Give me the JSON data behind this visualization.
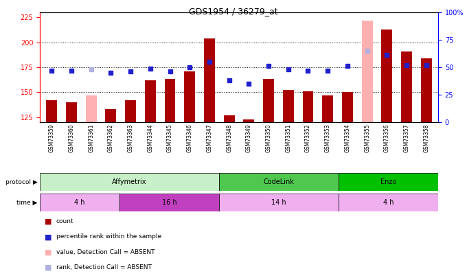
{
  "title": "GDS1954 / 36279_at",
  "samples": [
    "GSM73359",
    "GSM73360",
    "GSM73361",
    "GSM73362",
    "GSM73363",
    "GSM73344",
    "GSM73345",
    "GSM73346",
    "GSM73347",
    "GSM73348",
    "GSM73349",
    "GSM73350",
    "GSM73351",
    "GSM73352",
    "GSM73353",
    "GSM73354",
    "GSM73355",
    "GSM73356",
    "GSM73357",
    "GSM73358"
  ],
  "count_values": [
    142,
    140,
    147,
    133,
    142,
    162,
    163,
    171,
    204,
    127,
    123,
    163,
    152,
    151,
    147,
    150,
    222,
    213,
    191,
    184
  ],
  "rank_values": [
    47,
    47,
    48,
    45,
    46,
    49,
    46,
    50,
    55,
    38,
    35,
    51,
    48,
    47,
    47,
    51,
    65,
    61,
    52,
    52
  ],
  "absent_count": [
    false,
    false,
    true,
    false,
    false,
    false,
    false,
    false,
    false,
    false,
    false,
    false,
    false,
    false,
    false,
    false,
    true,
    false,
    false,
    false
  ],
  "absent_rank": [
    false,
    false,
    true,
    false,
    false,
    false,
    false,
    false,
    false,
    false,
    false,
    false,
    false,
    false,
    false,
    false,
    true,
    false,
    false,
    false
  ],
  "ylim_left": [
    120,
    230
  ],
  "ylim_right": [
    0,
    100
  ],
  "yticks_left": [
    125,
    150,
    175,
    200,
    225
  ],
  "yticks_right": [
    0,
    25,
    50,
    75,
    100
  ],
  "protocol_groups": [
    {
      "label": "Affymetrix",
      "start": 0,
      "end": 9,
      "color": "#c8f0c8"
    },
    {
      "label": "CodeLink",
      "start": 9,
      "end": 15,
      "color": "#50c850"
    },
    {
      "label": "Enzo",
      "start": 15,
      "end": 20,
      "color": "#00c000"
    }
  ],
  "time_groups": [
    {
      "label": "4 h",
      "start": 0,
      "end": 4,
      "color": "#f0b0f0"
    },
    {
      "label": "16 h",
      "start": 4,
      "end": 9,
      "color": "#c040c0"
    },
    {
      "label": "14 h",
      "start": 9,
      "end": 15,
      "color": "#f0b0f0"
    },
    {
      "label": "4 h",
      "start": 15,
      "end": 20,
      "color": "#f0b0f0"
    }
  ],
  "bar_width": 0.55,
  "count_color": "#aa0000",
  "count_absent_color": "#ffb0b0",
  "rank_color": "#2020cc",
  "rank_absent_color": "#b0b0e0",
  "bg_color": "#ffffff",
  "n_samples": 20
}
